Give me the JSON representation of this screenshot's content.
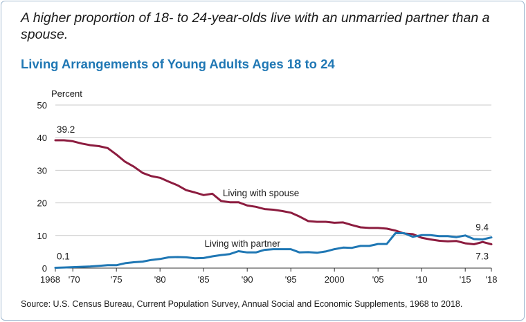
{
  "headline": "A higher proportion of 18- to 24-year-olds live with an unmarried partner than a spouse.",
  "source": "Source: U.S. Census Bureau, Current Population Survey, Annual Social and Economic Supplements, 1968 to 2018.",
  "colors": {
    "spouse": "#8c1c3f",
    "partner": "#1f77b4",
    "title": "#1f77b4",
    "grid": "#c8c8c8"
  },
  "chart_data": {
    "type": "line",
    "title": "Living Arrangements of Young Adults Ages 18 to 24",
    "ylabel": "Percent",
    "xlabel": "",
    "xlim": [
      1968,
      2018
    ],
    "ylim": [
      0,
      50
    ],
    "yticks": [
      0,
      10,
      20,
      30,
      40,
      50
    ],
    "xticks": [
      {
        "value": 1968,
        "label": "1968"
      },
      {
        "value": 1970,
        "label": "'70"
      },
      {
        "value": 1975,
        "label": "'75"
      },
      {
        "value": 1980,
        "label": "'80"
      },
      {
        "value": 1985,
        "label": "'85"
      },
      {
        "value": 1990,
        "label": "'90"
      },
      {
        "value": 1995,
        "label": "'95"
      },
      {
        "value": 2000,
        "label": "2000"
      },
      {
        "value": 2005,
        "label": "'05"
      },
      {
        "value": 2010,
        "label": "'10"
      },
      {
        "value": 2015,
        "label": "'15"
      },
      {
        "value": 2018,
        "label": "'18"
      }
    ],
    "grid": true,
    "legend": "none",
    "x": [
      1968,
      1969,
      1970,
      1971,
      1972,
      1973,
      1974,
      1975,
      1976,
      1977,
      1978,
      1979,
      1980,
      1981,
      1982,
      1983,
      1984,
      1985,
      1986,
      1987,
      1988,
      1989,
      1990,
      1991,
      1992,
      1993,
      1994,
      1995,
      1996,
      1997,
      1998,
      1999,
      2000,
      2001,
      2002,
      2003,
      2004,
      2005,
      2006,
      2007,
      2008,
      2009,
      2010,
      2011,
      2012,
      2013,
      2014,
      2015,
      2016,
      2017,
      2018
    ],
    "series": [
      {
        "name": "Living with spouse",
        "values": [
          39.2,
          39.2,
          38.9,
          38.2,
          37.7,
          37.4,
          36.8,
          34.8,
          32.6,
          31.1,
          29.2,
          28.2,
          27.7,
          26.5,
          25.4,
          23.9,
          23.2,
          22.4,
          22.8,
          20.6,
          20.2,
          20.2,
          19.2,
          18.8,
          18.1,
          17.9,
          17.5,
          17.0,
          15.8,
          14.4,
          14.2,
          14.2,
          13.9,
          14.0,
          13.2,
          12.5,
          12.3,
          12.3,
          12.1,
          11.5,
          10.6,
          10.4,
          9.3,
          8.8,
          8.4,
          8.2,
          8.3,
          7.6,
          7.3,
          8.0,
          7.3
        ]
      },
      {
        "name": "Living with partner",
        "values": [
          0.1,
          0.2,
          0.3,
          0.4,
          0.5,
          0.7,
          0.9,
          0.9,
          1.5,
          1.8,
          2.0,
          2.5,
          2.8,
          3.3,
          3.4,
          3.3,
          3.0,
          3.1,
          3.6,
          4.0,
          4.3,
          5.2,
          4.8,
          4.8,
          5.6,
          5.8,
          5.8,
          5.8,
          4.8,
          4.9,
          4.7,
          5.1,
          5.8,
          6.3,
          6.2,
          6.8,
          6.8,
          7.4,
          7.4,
          10.7,
          10.7,
          9.6,
          10.1,
          10.1,
          9.8,
          9.8,
          9.5,
          10.0,
          8.9,
          8.8,
          9.4
        ]
      }
    ],
    "annotations": {
      "spouse_label": "Living with spouse",
      "partner_label": "Living with partner",
      "spouse_start": "39.2",
      "partner_start": "0.1",
      "spouse_end": "7.3",
      "partner_end": "9.4"
    }
  }
}
